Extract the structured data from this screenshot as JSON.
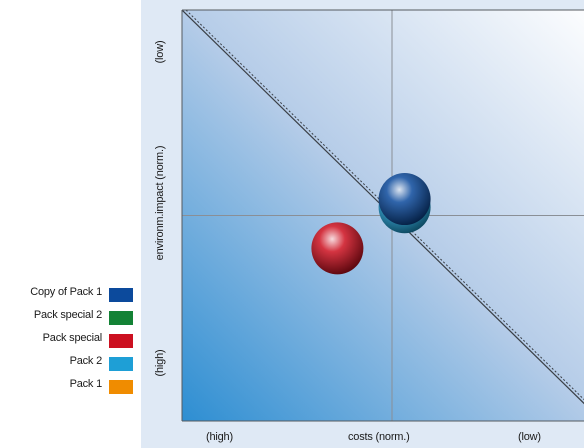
{
  "chart_data": {
    "type": "scatter",
    "xlabel": "costs (norm.)",
    "ylabel": "environm.impact (norm.)",
    "x_tick_labels": [
      "(high)",
      "(low)"
    ],
    "y_tick_labels": [
      "(low)",
      "(high)"
    ],
    "xlim": [
      0,
      1
    ],
    "ylim": [
      0,
      1
    ],
    "grid": true,
    "legend_position": "left",
    "series": [
      {
        "name": "Copy of Pack 1",
        "color": "#0c4a9c",
        "points": [
          {
            "x": 0.53,
            "y": 0.54
          }
        ]
      },
      {
        "name": "Pack special 2",
        "color": "#138235",
        "points": []
      },
      {
        "name": "Pack special",
        "color": "#cc1020",
        "points": [
          {
            "x": 0.37,
            "y": 0.42
          }
        ]
      },
      {
        "name": "Pack 2",
        "color": "#1e9fd6",
        "points": [
          {
            "x": 0.53,
            "y": 0.52
          }
        ]
      },
      {
        "name": "Pack 1",
        "color": "#f08c00",
        "points": []
      }
    ]
  }
}
